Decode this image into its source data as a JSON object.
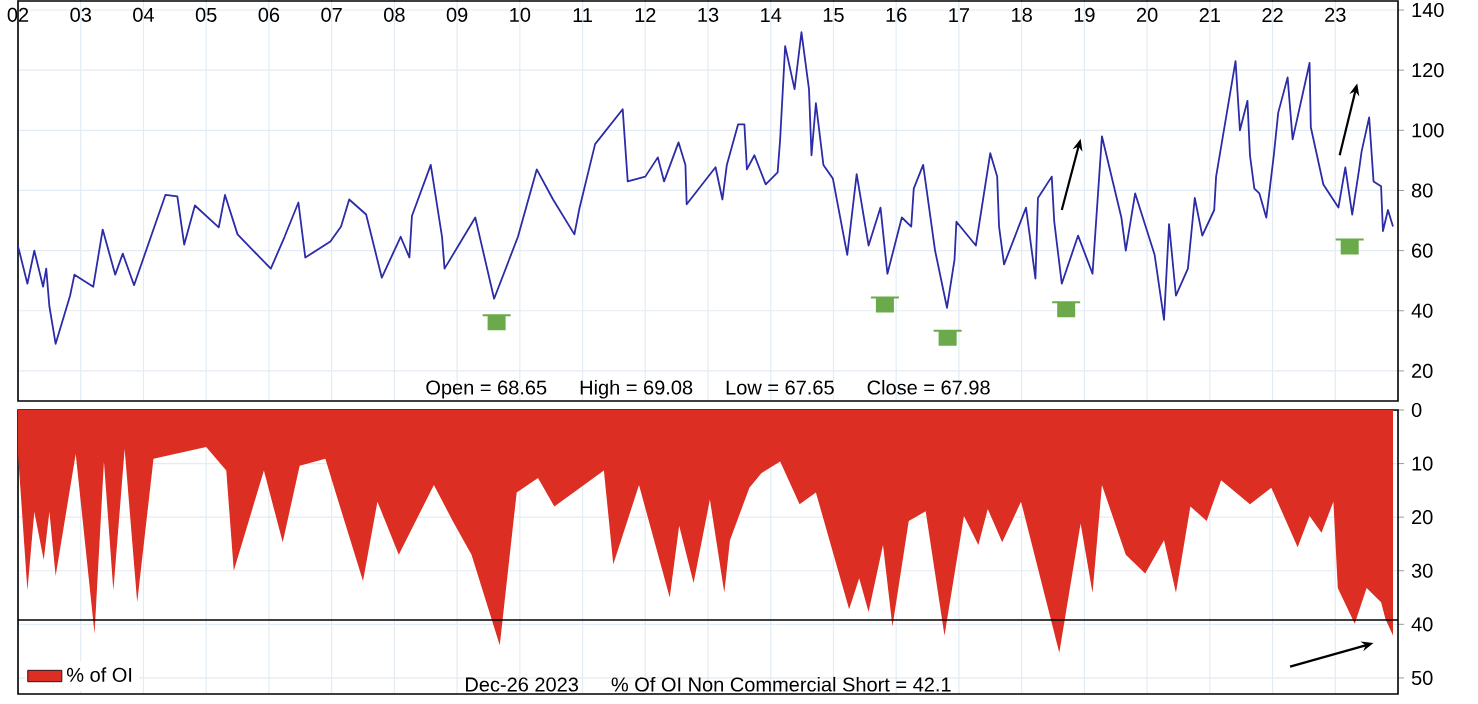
{
  "chart_data": [
    {
      "type": "line",
      "color": "#2c2ca8",
      "x": [
        2002.0,
        2002.15,
        2002.26,
        2002.4,
        2002.45,
        2002.5,
        2002.6,
        2002.83,
        2002.9,
        2003.2,
        2003.35,
        2003.55,
        2003.67,
        2003.85,
        2004.35,
        2004.54,
        2004.65,
        2004.82,
        2005.2,
        2005.3,
        2005.5,
        2005.75,
        2006.03,
        2006.25,
        2006.47,
        2006.58,
        2006.98,
        2007.15,
        2007.28,
        2007.55,
        2007.8,
        2008.1,
        2008.24,
        2008.28,
        2008.58,
        2008.76,
        2008.8,
        2009.29,
        2009.59,
        2009.97,
        2010.27,
        2010.53,
        2010.87,
        2010.95,
        2011.2,
        2011.64,
        2011.72,
        2012.0,
        2012.2,
        2012.3,
        2012.53,
        2012.64,
        2012.66,
        2013.12,
        2013.23,
        2013.3,
        2013.48,
        2013.58,
        2013.62,
        2013.74,
        2013.92,
        2014.11,
        2014.15,
        2014.23,
        2014.38,
        2014.49,
        2014.61,
        2014.65,
        2014.72,
        2014.84,
        2014.99,
        2015.22,
        2015.37,
        2015.56,
        2015.75,
        2015.86,
        2016.09,
        2016.24,
        2016.28,
        2016.43,
        2016.62,
        2016.81,
        2016.93,
        2016.96,
        2017.27,
        2017.5,
        2017.61,
        2017.64,
        2017.72,
        2018.07,
        2018.22,
        2018.26,
        2018.48,
        2018.52,
        2018.64,
        2018.9,
        2019.13,
        2019.28,
        2019.59,
        2019.66,
        2019.81,
        2020.12,
        2020.27,
        2020.35,
        2020.46,
        2020.65,
        2020.76,
        2020.88,
        2021.07,
        2021.1,
        2021.41,
        2021.48,
        2021.6,
        2021.64,
        2021.71,
        2021.79,
        2021.9,
        2022.02,
        2022.09,
        2022.24,
        2022.32,
        2022.59,
        2022.61,
        2022.81,
        2023.05,
        2023.16,
        2023.27,
        2023.38,
        2023.42,
        2023.54,
        2023.61,
        2023.73,
        2023.76,
        2023.84,
        2023.92
      ],
      "values": [
        61.5,
        49,
        60,
        48,
        54,
        41.5,
        29,
        45,
        52,
        48,
        67,
        52,
        59,
        48.5,
        78.5,
        78,
        62,
        75,
        67.7,
        78.5,
        65.4,
        60,
        54,
        64.6,
        76,
        57.7,
        63,
        68,
        77,
        72,
        51,
        64.6,
        57.7,
        71.5,
        88.5,
        64.6,
        54,
        71,
        44,
        64.6,
        87,
        77,
        65.4,
        74,
        95.4,
        107,
        83,
        84.6,
        91,
        83,
        96,
        88.5,
        75.4,
        87.7,
        77,
        88.5,
        102,
        102,
        87,
        91.7,
        82,
        86,
        97,
        128,
        113.7,
        132.6,
        113.7,
        91.7,
        109,
        88.5,
        84,
        58.6,
        85.4,
        61.7,
        74.3,
        52.3,
        71,
        68,
        80.6,
        88.5,
        60,
        41,
        57,
        69.6,
        61.7,
        92.4,
        84.6,
        68,
        55.4,
        74.3,
        50.7,
        77.5,
        84.6,
        69.6,
        49,
        65,
        52.3,
        98,
        71,
        60,
        79,
        58.6,
        37,
        68.8,
        45,
        54,
        77.5,
        65,
        73.5,
        84.6,
        123,
        100,
        109.8,
        91.7,
        80.6,
        79,
        71,
        91.7,
        105.8,
        117.6,
        97,
        122.4,
        101,
        82,
        74.3,
        87.7,
        72,
        87,
        93,
        104.3,
        83,
        81.4,
        66.5,
        73.5,
        68
      ],
      "xlim": [
        2002,
        2024
      ],
      "xticks": [
        {
          "value": 2002,
          "label": "02"
        },
        {
          "value": 2003,
          "label": "03"
        },
        {
          "value": 2004,
          "label": "04"
        },
        {
          "value": 2005,
          "label": "05"
        },
        {
          "value": 2006,
          "label": "06"
        },
        {
          "value": 2007,
          "label": "07"
        },
        {
          "value": 2008,
          "label": "08"
        },
        {
          "value": 2009,
          "label": "09"
        },
        {
          "value": 2010,
          "label": "10"
        },
        {
          "value": 2011,
          "label": "11"
        },
        {
          "value": 2012,
          "label": "12"
        },
        {
          "value": 2013,
          "label": "13"
        },
        {
          "value": 2014,
          "label": "14"
        },
        {
          "value": 2015,
          "label": "15"
        },
        {
          "value": 2016,
          "label": "16"
        },
        {
          "value": 2017,
          "label": "17"
        },
        {
          "value": 2018,
          "label": "18"
        },
        {
          "value": 2019,
          "label": "19"
        },
        {
          "value": 2020,
          "label": "20"
        },
        {
          "value": 2021,
          "label": "21"
        },
        {
          "value": 2022,
          "label": "22"
        },
        {
          "value": 2023,
          "label": "23"
        }
      ],
      "ylim": [
        10,
        143
      ],
      "yticks": [
        20,
        40,
        60,
        80,
        100,
        120,
        140
      ],
      "grid": true,
      "annotations": [
        "Open = 68.65",
        "High = 69.08",
        "Low = 67.65",
        "Close = 67.98"
      ]
    },
    {
      "type": "area",
      "x": [
        2002.0,
        2002.15,
        2002.26,
        2002.41,
        2002.5,
        2002.6,
        2002.92,
        2003.22,
        2003.37,
        2003.52,
        2003.7,
        2003.9,
        2004.16,
        2005.0,
        2005.32,
        2005.44,
        2005.92,
        2006.22,
        2006.49,
        2006.9,
        2007.05,
        2007.5,
        2007.73,
        2008.07,
        2008.63,
        2008.93,
        2009.23,
        2009.68,
        2009.95,
        2010.29,
        2010.55,
        2011.34,
        2011.49,
        2011.9,
        2012.39,
        2012.54,
        2012.77,
        2013.03,
        2013.26,
        2013.35,
        2013.66,
        2013.85,
        2014.15,
        2014.46,
        2014.72,
        2015.25,
        2015.41,
        2015.56,
        2015.79,
        2015.94,
        2016.2,
        2016.47,
        2016.77,
        2017.08,
        2017.31,
        2017.46,
        2017.69,
        2017.99,
        2018.6,
        2018.94,
        2019.13,
        2019.28,
        2019.66,
        2019.97,
        2020.27,
        2020.46,
        2020.69,
        2020.95,
        2021.18,
        2021.64,
        2021.98,
        2022.4,
        2022.59,
        2022.78,
        2022.97,
        2023.04,
        2023.31,
        2023.5,
        2023.73,
        2023.8,
        2023.92
      ],
      "series": [
        {
          "name": "% of OI",
          "color": "#dc2e22",
          "values": [
            8.2,
            33.7,
            19,
            28,
            19,
            31,
            8.2,
            41.7,
            9.6,
            33.7,
            7.3,
            35.9,
            9.1,
            6.9,
            11.3,
            30,
            11.3,
            24.7,
            10.4,
            9.1,
            14.9,
            31.9,
            17.1,
            27,
            14,
            20.7,
            27,
            43.9,
            15.4,
            12.7,
            18,
            11.3,
            28.8,
            14,
            35,
            21.6,
            32.3,
            16.7,
            34.1,
            24.3,
            14.5,
            11.8,
            9.6,
            17.6,
            15.4,
            37.2,
            31.4,
            37.7,
            25.2,
            40.4,
            20.7,
            18.9,
            42.1,
            19.8,
            25.2,
            18.5,
            24.7,
            17.1,
            45.3,
            21.2,
            34.1,
            14,
            27,
            30.5,
            24.3,
            34.1,
            18,
            20.7,
            13.1,
            17.6,
            14.5,
            25.6,
            19.8,
            22.9,
            17.1,
            33.2,
            39.9,
            33.2,
            35.9,
            39,
            42.1
          ]
        }
      ],
      "xlim": [
        2002,
        2024
      ],
      "xticks": [
        {
          "value": 2002,
          "label": null
        },
        {
          "value": 2003,
          "label": null
        },
        {
          "value": 2004,
          "label": null
        },
        {
          "value": 2005,
          "label": null
        },
        {
          "value": 2006,
          "label": null
        },
        {
          "value": 2007,
          "label": null
        },
        {
          "value": 2008,
          "label": null
        },
        {
          "value": 2009,
          "label": null
        },
        {
          "value": 2010,
          "label": null
        },
        {
          "value": 2011,
          "label": null
        },
        {
          "value": 2012,
          "label": null
        },
        {
          "value": 2013,
          "label": null
        },
        {
          "value": 2014,
          "label": null
        },
        {
          "value": 2015,
          "label": null
        },
        {
          "value": 2016,
          "label": null
        },
        {
          "value": 2017,
          "label": null
        },
        {
          "value": 2018,
          "label": null
        },
        {
          "value": 2019,
          "label": null
        },
        {
          "value": 2020,
          "label": null
        },
        {
          "value": 2021,
          "label": null
        },
        {
          "value": 2022,
          "label": null
        },
        {
          "value": 2023,
          "label": null
        }
      ],
      "tick_labels": "y",
      "ylim": [
        53,
        0
      ],
      "yticks": [
        0,
        10,
        20,
        30,
        40,
        50
      ],
      "grid": true,
      "legend": "bottom left",
      "ref_lines": [
        {
          "axis": "y",
          "value": 39.2,
          "color": "#000000"
        }
      ],
      "annotations": [
        "Dec-26 2023",
        "% Of OI Non Commercial Short = 42.1"
      ]
    }
  ]
}
